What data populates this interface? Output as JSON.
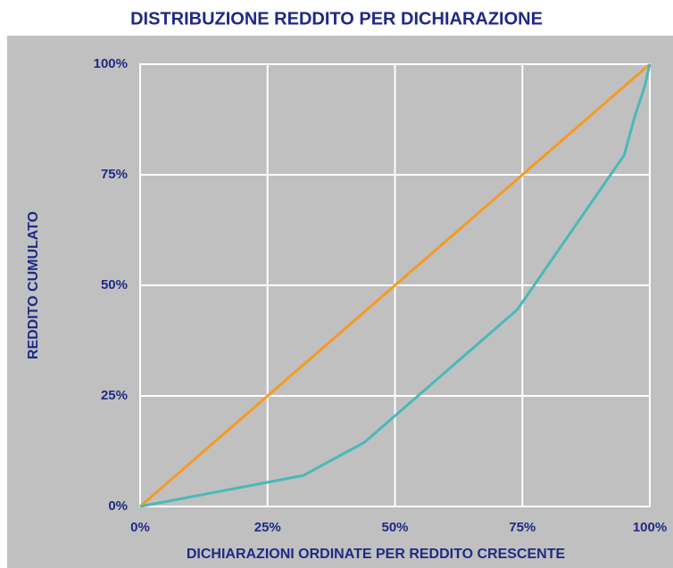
{
  "chart_data": {
    "type": "line",
    "title": "DISTRIBUZIONE REDDITO PER DICHIARAZIONE",
    "x_label": "DICHIARAZIONI ORDINATE PER REDDITO CRESCENTE",
    "y_label": "REDDITO CUMULATO",
    "series": [
      {
        "color": "#f59a23",
        "x": [
          0,
          100
        ],
        "values": [
          0,
          100
        ]
      },
      {
        "color": "#4bb8b8",
        "x": [
          0,
          32,
          44,
          74,
          95,
          97,
          99,
          100
        ],
        "values": [
          0,
          7,
          14.5,
          44.5,
          79.5,
          88,
          95,
          100
        ]
      }
    ],
    "xlim": [
      0,
      100
    ],
    "ylim": [
      0,
      100
    ],
    "xticks": [
      {
        "value": 0,
        "label": "0%"
      },
      {
        "value": 25,
        "label": "25%"
      },
      {
        "value": 50,
        "label": "50%"
      },
      {
        "value": 75,
        "label": "75%"
      },
      {
        "value": 100,
        "label": "100%"
      }
    ],
    "yticks": [
      {
        "value": 0,
        "label": "0%"
      },
      {
        "value": 25,
        "label": "25%"
      },
      {
        "value": 50,
        "label": "50%"
      },
      {
        "value": 75,
        "label": "75%"
      },
      {
        "value": 100,
        "label": "100%"
      }
    ],
    "grid": true
  }
}
